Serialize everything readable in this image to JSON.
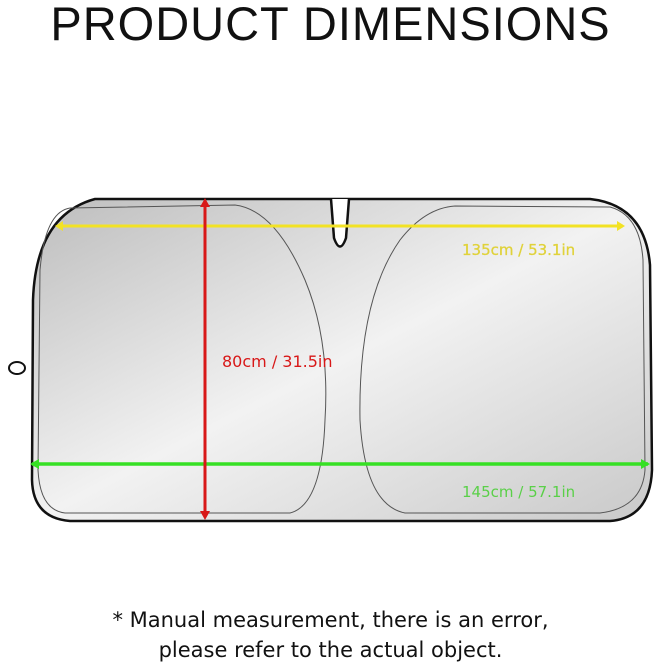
{
  "title": "PRODUCT DIMENSIONS",
  "dimensions": {
    "width_top": "135cm / 53.1in",
    "height": "80cm / 31.5in",
    "width_bottom": "145cm / 57.1in"
  },
  "colors": {
    "width_top": "#f2e224",
    "height": "#d81818",
    "width_bottom": "#36e024"
  },
  "note": {
    "line1": "* Manual measurement, there is an error,",
    "line2": "please refer to the actual object."
  }
}
